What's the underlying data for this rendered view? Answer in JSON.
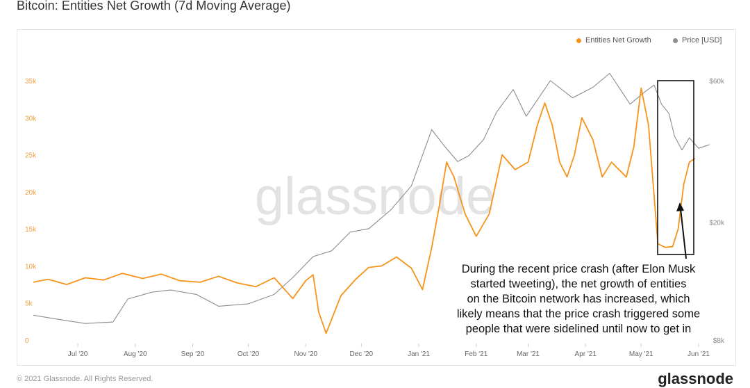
{
  "title": "Bitcoin: Entities Net Growth (7d Moving Average)",
  "legend": {
    "series1": "Entities Net Growth",
    "series2": "Price [USD]"
  },
  "watermark": "glassnode",
  "annotation": [
    "During the recent price crash (after Elon Musk",
    "started tweeting), the net growth of entities",
    "on the Bitcoin network has increased, which",
    "likely means that the price crash triggered some",
    "people that were sidelined until now to get in"
  ],
  "footer": {
    "left": "© 2021 Glassnode. All Rights Reserved.",
    "right": "glassnode"
  },
  "colors": {
    "entities": "#f7931a",
    "price": "#8c8c8c"
  },
  "chart_data": {
    "type": "line",
    "title": "Bitcoin: Entities Net Growth (7d Moving Average)",
    "x_ticks": [
      "Jul '20",
      "Aug '20",
      "Sep '20",
      "Oct '20",
      "Nov '20",
      "Dec '20",
      "Jan '21",
      "Feb '21",
      "Mar '21",
      "Apr '21",
      "May '21",
      "Jun '21"
    ],
    "y_left_ticks": [
      "0",
      "5k",
      "10k",
      "15k",
      "20k",
      "25k",
      "30k",
      "35k"
    ],
    "y_left_range": [
      0,
      35000
    ],
    "y_right_ticks": [
      "$8k",
      "$20k",
      "$60k"
    ],
    "y_right_scale": "log",
    "x_range": [
      "2020-06-07",
      "2021-06-07"
    ],
    "series": [
      {
        "name": "Entities Net Growth",
        "color": "#f7931a",
        "axis": "left",
        "x": [
          "2020-06-07",
          "2020-06-15",
          "2020-06-25",
          "2020-07-05",
          "2020-07-15",
          "2020-07-25",
          "2020-08-05",
          "2020-08-15",
          "2020-08-25",
          "2020-09-05",
          "2020-09-15",
          "2020-09-25",
          "2020-10-05",
          "2020-10-15",
          "2020-10-25",
          "2020-11-01",
          "2020-11-05",
          "2020-11-08",
          "2020-11-12",
          "2020-11-20",
          "2020-11-28",
          "2020-12-05",
          "2020-12-12",
          "2020-12-20",
          "2020-12-28",
          "2021-01-03",
          "2021-01-08",
          "2021-01-12",
          "2021-01-16",
          "2021-01-20",
          "2021-01-26",
          "2021-02-01",
          "2021-02-08",
          "2021-02-15",
          "2021-02-22",
          "2021-03-01",
          "2021-03-06",
          "2021-03-10",
          "2021-03-14",
          "2021-03-18",
          "2021-03-22",
          "2021-03-26",
          "2021-03-30",
          "2021-04-05",
          "2021-04-10",
          "2021-04-15",
          "2021-04-19",
          "2021-04-23",
          "2021-04-27",
          "2021-05-01",
          "2021-05-05",
          "2021-05-10",
          "2021-05-14",
          "2021-05-18",
          "2021-05-21",
          "2021-05-24",
          "2021-05-27",
          "2021-05-30"
        ],
        "y": [
          7800,
          8200,
          7500,
          8400,
          8100,
          9000,
          8300,
          8900,
          8000,
          7800,
          8600,
          7700,
          7200,
          8400,
          5600,
          8000,
          8800,
          3800,
          900,
          6000,
          8200,
          9800,
          10000,
          11200,
          9700,
          6800,
          12500,
          18000,
          24000,
          22000,
          17000,
          14000,
          17000,
          25000,
          23000,
          24000,
          29000,
          32000,
          29000,
          24000,
          22000,
          25000,
          30000,
          27000,
          22000,
          24000,
          23000,
          22000,
          26000,
          34000,
          29000,
          13000,
          12500,
          12600,
          15000,
          21000,
          24000,
          24500
        ]
      },
      {
        "name": "Price [USD]",
        "color": "#8c8c8c",
        "axis": "right",
        "x": [
          "2020-06-07",
          "2020-06-20",
          "2020-07-05",
          "2020-07-20",
          "2020-07-28",
          "2020-08-10",
          "2020-08-20",
          "2020-09-03",
          "2020-09-15",
          "2020-10-01",
          "2020-10-15",
          "2020-10-25",
          "2020-11-05",
          "2020-11-15",
          "2020-11-25",
          "2020-12-05",
          "2020-12-17",
          "2020-12-28",
          "2021-01-08",
          "2021-01-15",
          "2021-01-22",
          "2021-01-28",
          "2021-02-05",
          "2021-02-12",
          "2021-02-21",
          "2021-02-28",
          "2021-03-13",
          "2021-03-25",
          "2021-04-05",
          "2021-04-14",
          "2021-04-25",
          "2021-05-03",
          "2021-05-08",
          "2021-05-12",
          "2021-05-16",
          "2021-05-19",
          "2021-05-23",
          "2021-05-27",
          "2021-06-01",
          "2021-06-07"
        ],
        "y": [
          9700,
          9400,
          9100,
          9200,
          11000,
          11600,
          11800,
          11400,
          10400,
          10600,
          11400,
          13000,
          15300,
          16000,
          18500,
          19000,
          22000,
          26500,
          41000,
          36000,
          32000,
          33500,
          38000,
          47000,
          56000,
          45500,
          60000,
          52500,
          57000,
          63500,
          50000,
          55000,
          58000,
          50000,
          46500,
          39000,
          35000,
          38500,
          35500,
          36500
        ]
      }
    ]
  }
}
